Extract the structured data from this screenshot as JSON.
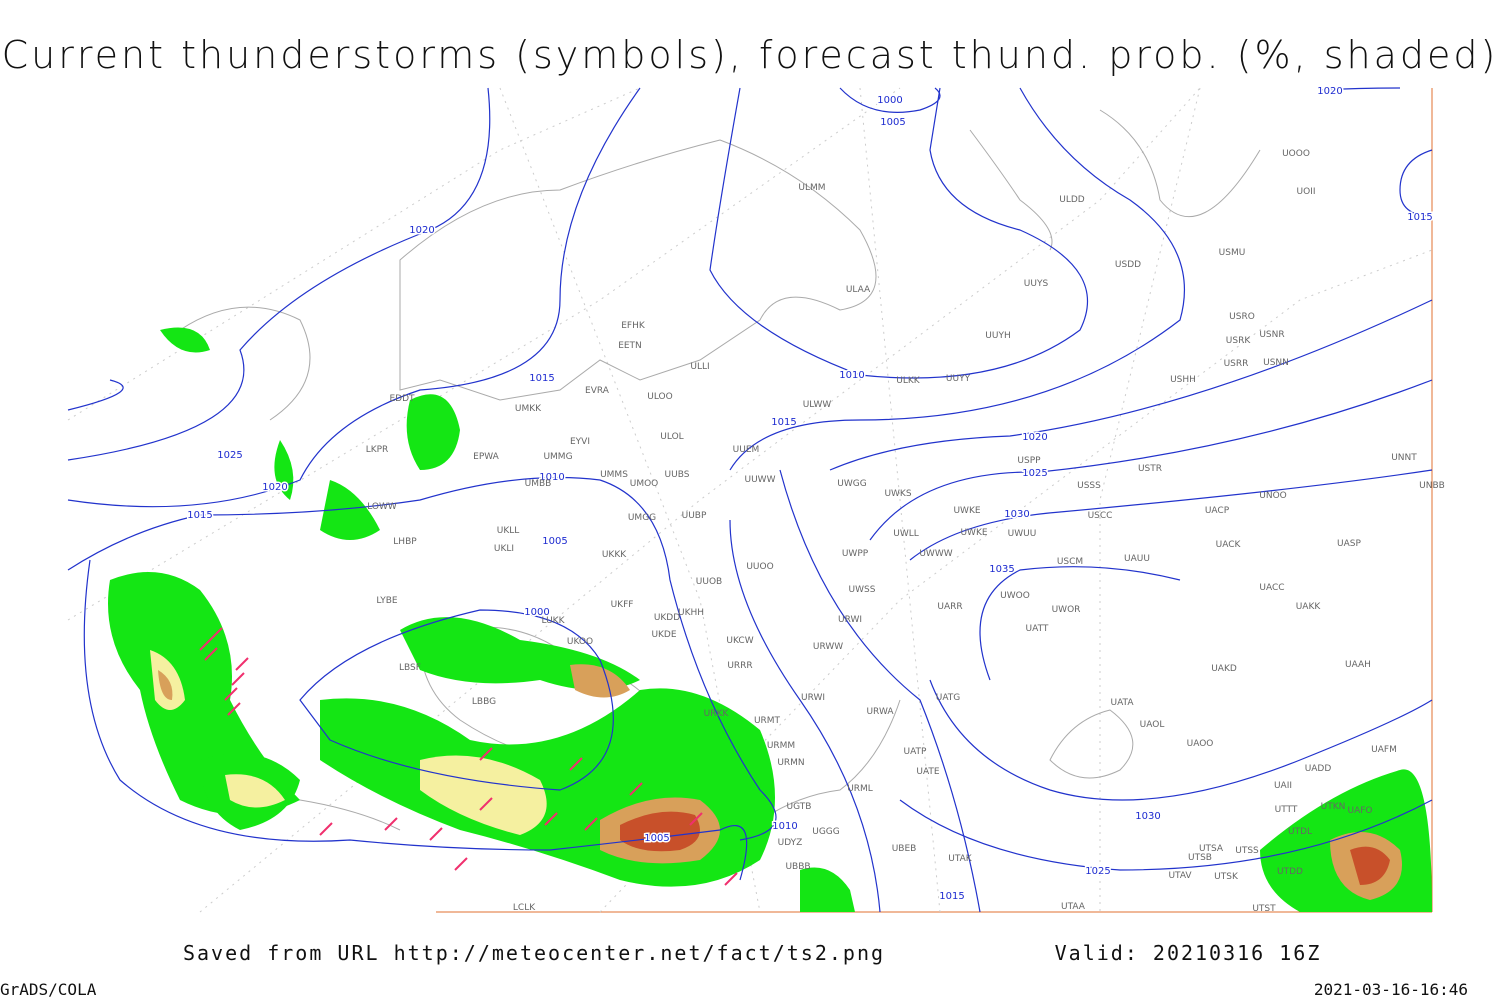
{
  "header": {
    "title": "Current thunderstorms (symbols), forecast thund. prob. (%, shaded)"
  },
  "footer": {
    "source": "Saved from URL http://meteocenter.net/fact/ts2.png",
    "valid": "Valid: 20210316 16Z",
    "software": "GrADS/COLA",
    "timestamp": "2021-03-16-16:46"
  },
  "isobar_labels": [
    "1000",
    "1005",
    "1020",
    "1015",
    "1020",
    "1015",
    "1010",
    "1015",
    "1020",
    "1025",
    "1030",
    "1035",
    "1025",
    "1020",
    "1015",
    "1010",
    "1005",
    "1000",
    "1005",
    "1010",
    "1015",
    "1025",
    "1030"
  ],
  "stations": [
    "ULMM",
    "ULDD",
    "USDD",
    "USMU",
    "UOOO",
    "UOII",
    "ULAA",
    "UUYS",
    "UUYH",
    "USRO",
    "USRK",
    "USNR",
    "USRR",
    "USNN",
    "USHH",
    "EFHK",
    "EETN",
    "ULLI",
    "EVRA",
    "ULOO",
    "ULKK",
    "UUYY",
    "UMKK",
    "ULWW",
    "EDDT",
    "EYVI",
    "ULOL",
    "UUEM",
    "LKPR",
    "EPWA",
    "UMMG",
    "USPP",
    "USTR",
    "UNNT",
    "UNBB",
    "UMMS",
    "UUBS",
    "UMBB",
    "UMOO",
    "UUWW",
    "UWGG",
    "UWKS",
    "USSS",
    "UNOO",
    "LOWW",
    "UMGG",
    "UUBP",
    "UWKE",
    "UWLL",
    "UWKE",
    "UWUU",
    "USCC",
    "UACP",
    "UKLL",
    "UWWW",
    "UACK",
    "UASP",
    "LHBP",
    "UKLI",
    "UKKK",
    "UWPP",
    "USCM",
    "UAUU",
    "UUOO",
    "UUOB",
    "UACC",
    "UWSS",
    "UWOO",
    "UWOR",
    "UARR",
    "UAKK",
    "LYBE",
    "UKHH",
    "UKDD",
    "UKFF",
    "LUKK",
    "UKOO",
    "UKDE",
    "URWI",
    "UATT",
    "UKCW",
    "URWW",
    "LBSF",
    "URRR",
    "UAKD",
    "UAAH",
    "LBBG",
    "URKK",
    "URWI",
    "URWA",
    "UATG",
    "UATA",
    "URMT",
    "UAOL",
    "UAOO",
    "UAFM",
    "URMM",
    "UATP",
    "URMN",
    "UATE",
    "UADD",
    "URML",
    "UAII",
    "UGTB",
    "UTTT",
    "UTKN",
    "UAFO",
    "UGGG",
    "UTDL",
    "UDYZ",
    "UBBB",
    "UBEB",
    "UTSA",
    "UTSS",
    "UTSB",
    "UTAK",
    "UTDD",
    "UTAV",
    "UTSK",
    "LCLK",
    "UTAA",
    "UTST"
  ]
}
